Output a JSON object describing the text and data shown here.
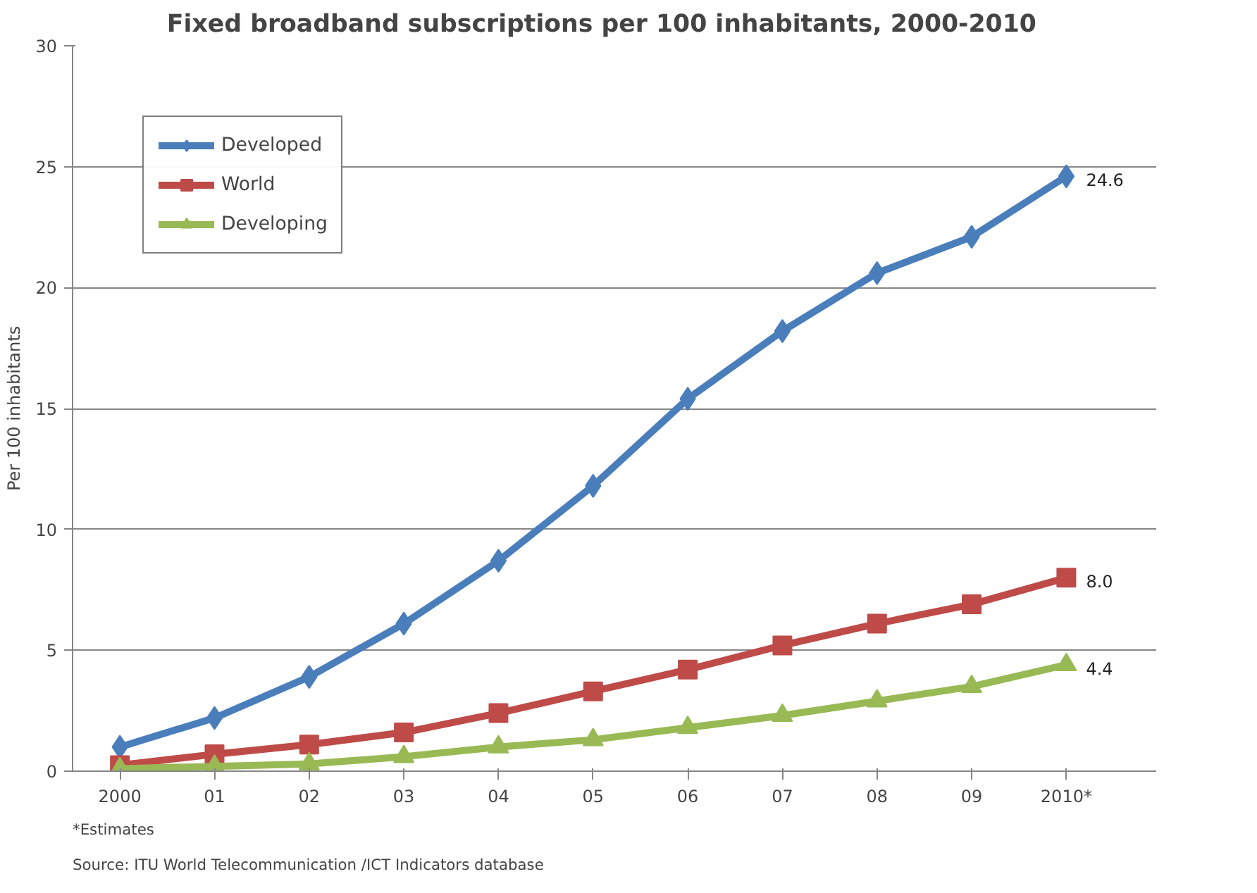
{
  "chart_data": {
    "type": "line",
    "title": "Fixed broadband  subscriptions  per 100 inhabitants,  2000-2010",
    "ylabel": "Per 100 inhabitants",
    "categories": [
      "2000",
      "01",
      "02",
      "03",
      "04",
      "05",
      "06",
      "07",
      "08",
      "09",
      "2010*"
    ],
    "series": [
      {
        "name": "Developed",
        "color": "#4a7ebb",
        "marker": "diamond",
        "values": [
          1.0,
          2.2,
          3.9,
          6.1,
          8.7,
          11.8,
          15.4,
          18.2,
          20.6,
          22.1,
          24.6
        ],
        "value_labels": [
          null,
          null,
          null,
          null,
          null,
          null,
          null,
          null,
          null,
          null,
          "24.6"
        ]
      },
      {
        "name": "World",
        "color": "#be4b48",
        "marker": "square",
        "values": [
          0.25,
          0.7,
          1.1,
          1.6,
          2.4,
          3.3,
          4.2,
          5.2,
          6.1,
          6.9,
          8.0
        ],
        "value_labels": [
          null,
          null,
          null,
          null,
          null,
          null,
          null,
          null,
          null,
          null,
          "8.0"
        ]
      },
      {
        "name": "Developing",
        "color": "#98b954",
        "marker": "triangle",
        "values": [
          0.1,
          0.2,
          0.3,
          0.6,
          1.0,
          1.3,
          1.8,
          2.3,
          2.9,
          3.5,
          4.4
        ],
        "value_labels": [
          null,
          null,
          null,
          null,
          null,
          null,
          null,
          null,
          null,
          null,
          "4.4"
        ]
      }
    ],
    "ylim": [
      0,
      30
    ],
    "yticks": [
      0,
      5,
      10,
      15,
      20,
      25,
      30
    ],
    "grid": "y",
    "legend": "top left",
    "line_style": "solid",
    "annotations": [
      "*Estimates",
      "Source: ITU World Telecommunication /ICT Indicators database"
    ]
  }
}
